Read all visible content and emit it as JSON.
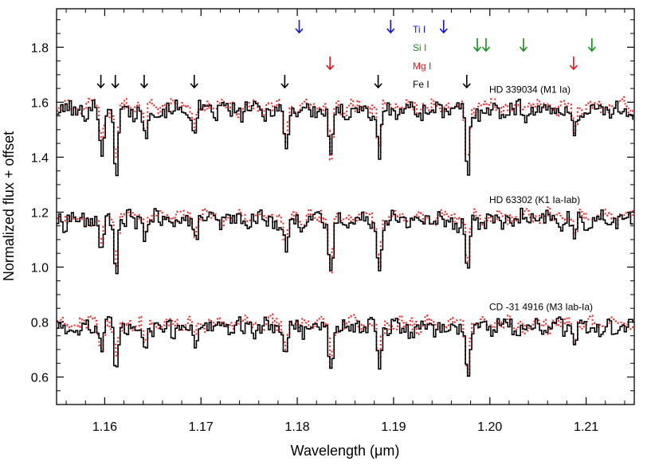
{
  "chart_data": {
    "type": "line",
    "xlabel": "Wavelength (μm)",
    "ylabel": "Normalized flux + offset",
    "xlim": [
      1.155,
      1.215
    ],
    "ylim": [
      0.5,
      1.94
    ],
    "x_ticks": [
      1.16,
      1.17,
      1.18,
      1.19,
      1.2,
      1.21
    ],
    "x_tick_labels": [
      "1.16",
      "1.17",
      "1.18",
      "1.19",
      "1.20",
      "1.21"
    ],
    "y_ticks": [
      0.6,
      0.8,
      1.0,
      1.2,
      1.4,
      1.6,
      1.8
    ],
    "y_tick_labels": [
      "0.6",
      "0.8",
      "1.0",
      "1.2",
      "1.4",
      "1.6",
      "1.8"
    ],
    "grid": false,
    "colors": {
      "observed": "#000000",
      "model": "#ff2020",
      "Ti I": "#1010e0",
      "Si I": "#109010",
      "Mg I": "#ee1010",
      "Fe I": "#000000"
    },
    "line_legend": [
      {
        "name": "Ti I",
        "color": "#1010e0"
      },
      {
        "name": "Si I",
        "color": "#109010"
      },
      {
        "name": "Mg I",
        "color": "#ee1010"
      },
      {
        "name": "Fe I",
        "color": "#000000"
      }
    ],
    "line_markers": [
      {
        "species": "Ti I",
        "x": [
          1.1802,
          1.1897,
          1.1952
        ]
      },
      {
        "species": "Si I",
        "x": [
          1.1987,
          1.1996,
          1.2035,
          1.2106
        ]
      },
      {
        "species": "Mg I",
        "x": [
          1.1834,
          1.2087
        ]
      },
      {
        "species": "Fe I",
        "x": [
          1.1596,
          1.1611,
          1.1641,
          1.1693,
          1.1787,
          1.1884,
          1.1976
        ]
      }
    ],
    "spectra": [
      {
        "label": "HD 339034  (M1 Ia)",
        "continuum": 1.57,
        "observed_lines": [
          {
            "x": 1.1596,
            "depth": 0.16
          },
          {
            "x": 1.1611,
            "depth": 0.25
          },
          {
            "x": 1.1641,
            "depth": 0.11
          },
          {
            "x": 1.1693,
            "depth": 0.1
          },
          {
            "x": 1.1787,
            "depth": 0.14
          },
          {
            "x": 1.1834,
            "depth": 0.2
          },
          {
            "x": 1.1884,
            "depth": 0.19
          },
          {
            "x": 1.1976,
            "depth": 0.24
          },
          {
            "x": 1.2087,
            "depth": 0.1
          }
        ],
        "model_lines": [
          {
            "x": 1.1596,
            "depth": 0.13
          },
          {
            "x": 1.1611,
            "depth": 0.21
          },
          {
            "x": 1.1641,
            "depth": 0.09
          },
          {
            "x": 1.1693,
            "depth": 0.09
          },
          {
            "x": 1.1787,
            "depth": 0.12
          },
          {
            "x": 1.1834,
            "depth": 0.19
          },
          {
            "x": 1.1884,
            "depth": 0.16
          },
          {
            "x": 1.1976,
            "depth": 0.21
          },
          {
            "x": 1.2087,
            "depth": 0.09
          }
        ]
      },
      {
        "label": "HD 63302  (K1 Ia-Iab)",
        "continuum": 1.17,
        "observed_lines": [
          {
            "x": 1.1596,
            "depth": 0.13
          },
          {
            "x": 1.1611,
            "depth": 0.17
          },
          {
            "x": 1.1641,
            "depth": 0.05
          },
          {
            "x": 1.1693,
            "depth": 0.06
          },
          {
            "x": 1.1787,
            "depth": 0.13
          },
          {
            "x": 1.1834,
            "depth": 0.21
          },
          {
            "x": 1.1884,
            "depth": 0.18
          },
          {
            "x": 1.1976,
            "depth": 0.21
          },
          {
            "x": 1.2087,
            "depth": 0.08
          }
        ],
        "model_lines": [
          {
            "x": 1.1596,
            "depth": 0.12
          },
          {
            "x": 1.1611,
            "depth": 0.16
          },
          {
            "x": 1.1641,
            "depth": 0.05
          },
          {
            "x": 1.1693,
            "depth": 0.06
          },
          {
            "x": 1.1787,
            "depth": 0.12
          },
          {
            "x": 1.1834,
            "depth": 0.2
          },
          {
            "x": 1.1884,
            "depth": 0.17
          },
          {
            "x": 1.1976,
            "depth": 0.2
          },
          {
            "x": 1.2087,
            "depth": 0.07
          }
        ]
      },
      {
        "label": "CD -31 4916  (M3 Iab-Ia)",
        "continuum": 0.78,
        "observed_lines": [
          {
            "x": 1.1596,
            "depth": 0.08
          },
          {
            "x": 1.1611,
            "depth": 0.16
          },
          {
            "x": 1.1641,
            "depth": 0.06
          },
          {
            "x": 1.1693,
            "depth": 0.05
          },
          {
            "x": 1.1787,
            "depth": 0.08
          },
          {
            "x": 1.1834,
            "depth": 0.16
          },
          {
            "x": 1.1884,
            "depth": 0.15
          },
          {
            "x": 1.1976,
            "depth": 0.17
          },
          {
            "x": 1.2087,
            "depth": 0.06
          }
        ],
        "model_lines": [
          {
            "x": 1.1596,
            "depth": 0.08
          },
          {
            "x": 1.1611,
            "depth": 0.15
          },
          {
            "x": 1.1641,
            "depth": 0.06
          },
          {
            "x": 1.1693,
            "depth": 0.05
          },
          {
            "x": 1.1787,
            "depth": 0.08
          },
          {
            "x": 1.1834,
            "depth": 0.16
          },
          {
            "x": 1.1884,
            "depth": 0.15
          },
          {
            "x": 1.1976,
            "depth": 0.17
          },
          {
            "x": 1.2087,
            "depth": 0.06
          }
        ]
      }
    ]
  }
}
